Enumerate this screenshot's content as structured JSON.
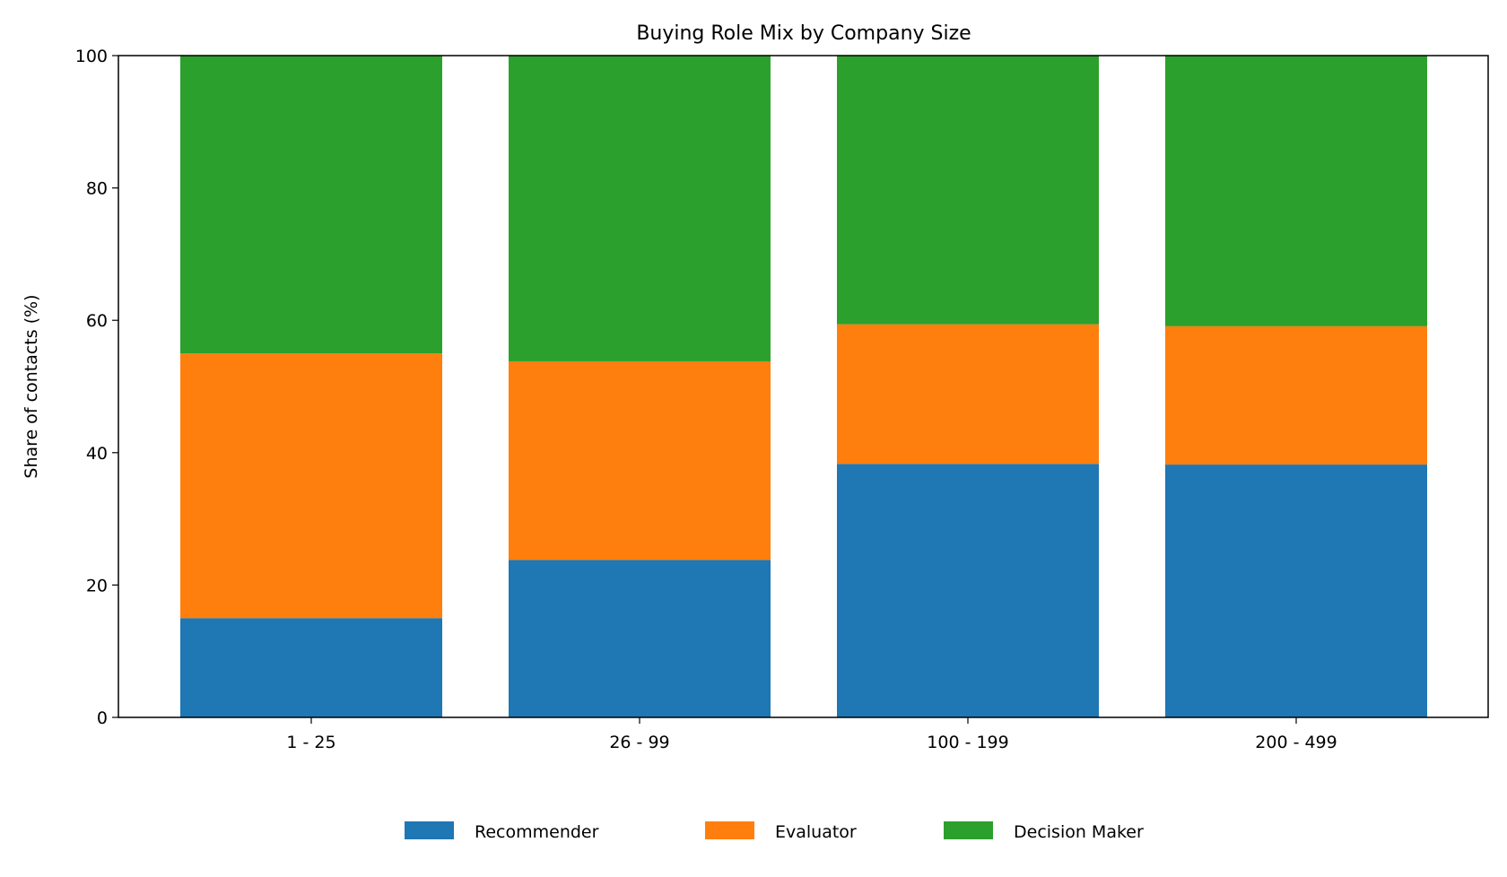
{
  "chart_data": {
    "type": "bar",
    "stacked": true,
    "title": "Buying Role Mix by Company Size",
    "xlabel": "",
    "ylabel": "Share of contacts (%)",
    "ylim": [
      0,
      100
    ],
    "yticks": [
      0,
      20,
      40,
      60,
      80,
      100
    ],
    "categories": [
      "1 - 25",
      "26 - 99",
      "100 - 199",
      "200 - 499"
    ],
    "series": [
      {
        "name": "Recommender",
        "color": "#1f77b4",
        "values": [
          15.0,
          23.8,
          38.3,
          38.2
        ]
      },
      {
        "name": "Evaluator",
        "color": "#ff7f0e",
        "values": [
          40.0,
          30.0,
          21.1,
          20.9
        ]
      },
      {
        "name": "Decision Maker",
        "color": "#2ca02c",
        "values": [
          45.0,
          46.2,
          40.6,
          40.9
        ]
      }
    ],
    "grid": false,
    "legend_position": "bottom-center"
  }
}
